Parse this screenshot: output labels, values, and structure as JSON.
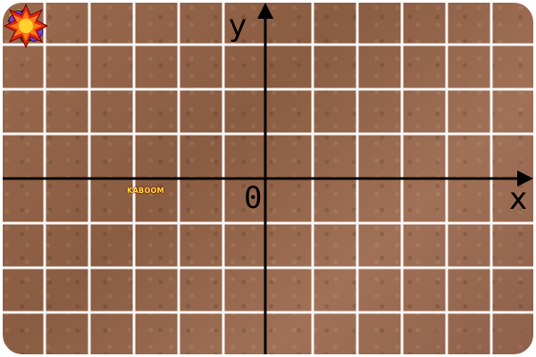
{
  "axes": {
    "x_label": "x",
    "y_label": "y",
    "origin_label": "0"
  },
  "crash": {
    "text": "KABOOM"
  },
  "sprites": {
    "yellow_car_color": "#f5c518",
    "purple_car_color": "#7b3fd1",
    "crash_colors": [
      "#d92b12",
      "#ff7a18",
      "#ffd22e"
    ]
  }
}
